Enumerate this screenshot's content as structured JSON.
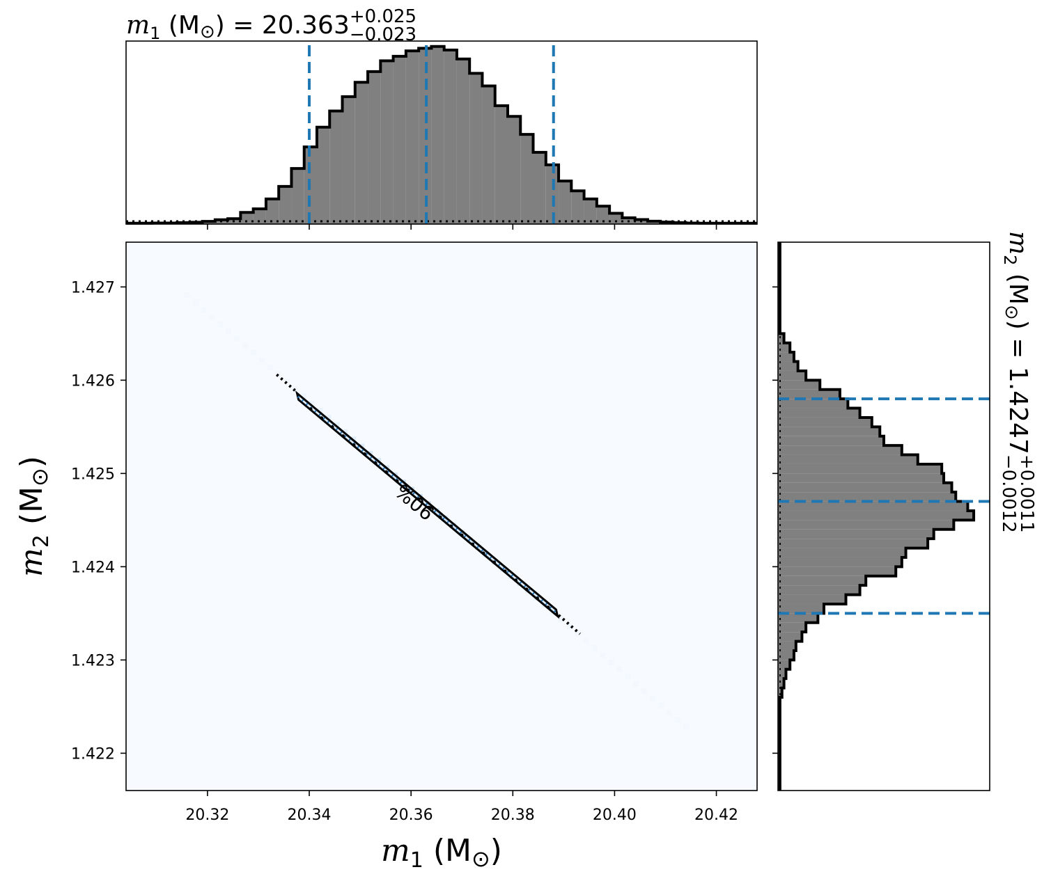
{
  "chart_data": [
    {
      "type": "histogram",
      "panel": "top-marginal",
      "title": {
        "var": "m",
        "sub": "1",
        "unit_pre": " (M",
        "unit_sym": "⊙",
        "unit_post": ") = ",
        "value": "20.363",
        "plus": "+0.025",
        "minus": "−0.023"
      },
      "xlim": [
        20.304,
        20.428
      ],
      "x_ticks": [
        20.32,
        20.34,
        20.36,
        20.38,
        20.4,
        20.42
      ],
      "quantile_lines": [
        20.34,
        20.363,
        20.388
      ],
      "bin_edges": [
        20.304,
        20.3065,
        20.309,
        20.3115,
        20.314,
        20.3165,
        20.319,
        20.3215,
        20.324,
        20.3265,
        20.329,
        20.3315,
        20.334,
        20.3365,
        20.339,
        20.3415,
        20.344,
        20.3465,
        20.349,
        20.3515,
        20.354,
        20.3565,
        20.359,
        20.3615,
        20.364,
        20.3665,
        20.369,
        20.3715,
        20.374,
        20.3765,
        20.379,
        20.3815,
        20.384,
        20.3865,
        20.389,
        20.3915,
        20.394,
        20.3965,
        20.399,
        20.4015,
        20.404,
        20.4065,
        20.409,
        20.4115,
        20.414,
        20.4165,
        20.419,
        20.4215,
        20.424,
        20.4265,
        20.428
      ],
      "counts": [
        0.5,
        0.5,
        0.6,
        0.6,
        0.8,
        1.0,
        1.5,
        2.4,
        3.0,
        6.5,
        8.5,
        14.0,
        21.0,
        31.0,
        43.0,
        54.0,
        63.0,
        71.0,
        79.0,
        85.0,
        91.0,
        93.5,
        96.5,
        98.0,
        99.0,
        97.0,
        92.0,
        84.0,
        77.0,
        66.0,
        60.0,
        50.0,
        40.0,
        33.0,
        24.0,
        18.5,
        14.0,
        10.0,
        6.0,
        3.5,
        2.5,
        1.6,
        1.1,
        0.8,
        0.6,
        0.5,
        0.5,
        0.5,
        0.5,
        0.5
      ],
      "ylim": [
        0,
        102
      ]
    },
    {
      "type": "heatmap",
      "panel": "joint",
      "xlabel": {
        "var": "m",
        "sub": "1",
        "unit_pre": " (M",
        "unit_sym": "⊙",
        "unit_post": ")"
      },
      "ylabel": {
        "var": "m",
        "sub": "2",
        "unit_pre": " (M",
        "unit_sym": "⊙",
        "unit_post": ")"
      },
      "xlim": [
        20.304,
        20.428
      ],
      "ylim": [
        1.4216,
        1.42748
      ],
      "x_ticks": [
        20.32,
        20.34,
        20.36,
        20.38,
        20.4,
        20.42
      ],
      "y_ticks": [
        1.422,
        1.423,
        1.424,
        1.425,
        1.426,
        1.427
      ],
      "contour_label": "90%",
      "contour_90": [
        [
          20.3376,
          1.42586
        ],
        [
          20.3885,
          1.42354
        ],
        [
          20.3888,
          1.42347
        ],
        [
          20.3379,
          1.42579
        ]
      ],
      "correlation_line": {
        "x": [
          20.316,
          20.414
        ],
        "y": [
          1.42691,
          1.42228
        ]
      },
      "colors": {
        "background": "#f7fbff",
        "density": "#c6dbef",
        "core": "#2171b5"
      }
    },
    {
      "type": "histogram",
      "panel": "right-marginal",
      "orientation": "horizontal",
      "title": {
        "var": "m",
        "sub": "2",
        "unit_pre": " (M",
        "unit_sym": "⊙",
        "unit_post": ") = ",
        "value": "1.4247",
        "plus": "+0.0011",
        "minus": "−0.0012"
      },
      "ylim": [
        1.4216,
        1.42748
      ],
      "y_ticks": [
        1.422,
        1.423,
        1.424,
        1.425,
        1.426,
        1.427
      ],
      "quantile_lines": [
        1.4235,
        1.4247,
        1.4258
      ],
      "bin_edges": [
        1.42748,
        1.4265,
        1.4264,
        1.4263,
        1.4262,
        1.4261,
        1.426,
        1.4259,
        1.4258,
        1.4257,
        1.4256,
        1.4255,
        1.4254,
        1.4253,
        1.4252,
        1.4251,
        1.425,
        1.4249,
        1.4248,
        1.4247,
        1.4246,
        1.4245,
        1.4244,
        1.4243,
        1.4242,
        1.4241,
        1.424,
        1.4239,
        1.4238,
        1.4237,
        1.4236,
        1.4235,
        1.4234,
        1.4233,
        1.4232,
        1.4231,
        1.423,
        1.4229,
        1.4228,
        1.4227,
        1.4226,
        1.4216
      ],
      "counts": [
        1,
        3,
        6,
        8,
        10,
        14,
        21,
        31,
        35,
        41,
        47,
        51,
        53,
        62,
        70,
        82,
        83,
        87,
        89,
        95,
        98,
        88,
        78,
        75,
        64,
        62,
        59,
        44,
        41,
        34,
        23,
        20,
        14,
        12,
        9,
        8,
        6,
        4,
        3,
        2,
        1
      ],
      "xlim": [
        0,
        106
      ]
    }
  ],
  "colors": {
    "hist_fill": "#808080",
    "hist_edge": "#000000",
    "quantile": "#1f77b4"
  }
}
